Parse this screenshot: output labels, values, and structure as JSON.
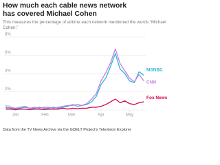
{
  "chart_data": {
    "type": "line",
    "title": "How much each cable news network has covered Michael Cohen",
    "subtitle": "This measures the percentage of airtime each network mentioned the words “Michael Cohen.”",
    "source": "Data from the TV News Archive via the GDELT Project's Television Explorer",
    "x": [
      -10,
      -5,
      0,
      5,
      10,
      15,
      20,
      25,
      30,
      35,
      40,
      45,
      50,
      55,
      60,
      65,
      70,
      75,
      80,
      85,
      90,
      95,
      100,
      105,
      110,
      115,
      120,
      125,
      130,
      135
    ],
    "xlim": [
      -12,
      137
    ],
    "xticks": [
      {
        "value": 0,
        "label": "Jan"
      },
      {
        "value": 31,
        "label": "Feb"
      },
      {
        "value": 59,
        "label": "Mar"
      },
      {
        "value": 90,
        "label": "Apr"
      },
      {
        "value": 120,
        "label": "May"
      }
    ],
    "ylim": [
      0,
      8
    ],
    "yticks": [
      {
        "value": 0,
        "label": "0%"
      },
      {
        "value": 2,
        "label": "2%"
      },
      {
        "value": 4,
        "label": "4%"
      },
      {
        "value": 6,
        "label": "6%"
      },
      {
        "value": 8,
        "label": "8%"
      }
    ],
    "grid": true,
    "series": [
      {
        "name": "MSNBC",
        "color": "#2fb7d6",
        "values": [
          0.3,
          0.2,
          0.1,
          0.2,
          0.3,
          0.2,
          0.2,
          0.3,
          0.2,
          0.2,
          0.3,
          0.2,
          0.3,
          0.4,
          0.6,
          0.4,
          0.5,
          0.6,
          0.9,
          1.5,
          2.8,
          3.5,
          4.8,
          6.2,
          4.5,
          4.0,
          3.2,
          3.0,
          4.2,
          3.8
        ]
      },
      {
        "name": "CNN",
        "color": "#c27fe6",
        "values": [
          0.2,
          0.3,
          0.2,
          0.3,
          0.4,
          0.2,
          0.3,
          0.2,
          0.3,
          0.3,
          0.2,
          0.3,
          0.4,
          0.5,
          0.5,
          0.6,
          0.5,
          0.7,
          1.2,
          1.8,
          3.2,
          4.1,
          5.2,
          6.7,
          5.1,
          4.3,
          3.5,
          3.1,
          3.9,
          3.2
        ]
      },
      {
        "name": "Fox News",
        "color": "#d4004f",
        "values": [
          0.1,
          0.1,
          0.05,
          0.1,
          0.1,
          0.05,
          0.1,
          0.1,
          0.05,
          0.1,
          0.1,
          0.1,
          0.2,
          0.1,
          0.2,
          0.15,
          0.2,
          0.2,
          0.3,
          0.3,
          0.4,
          0.6,
          0.9,
          1.2,
          0.8,
          1.0,
          0.7,
          0.6,
          0.8,
          0.9
        ]
      }
    ]
  }
}
